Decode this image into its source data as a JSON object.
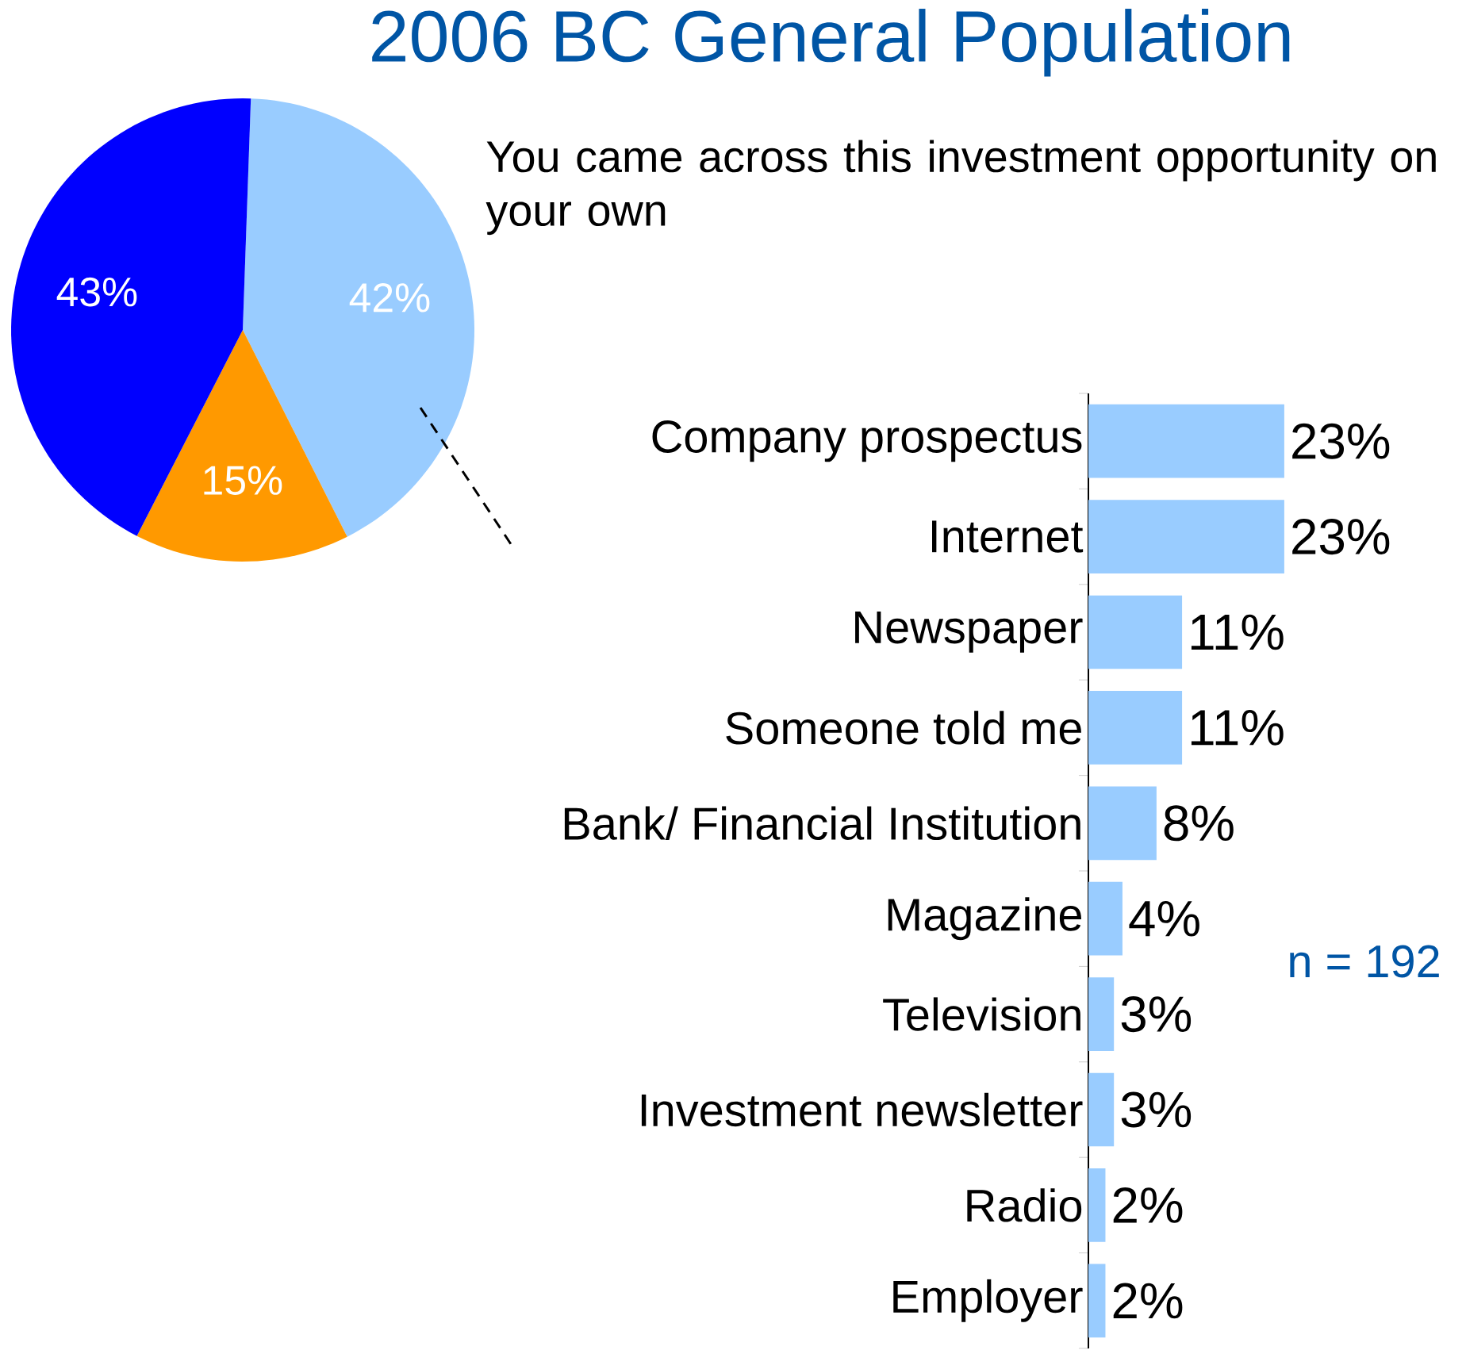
{
  "chart_data": [
    {
      "type": "pie",
      "title": "2006 BC General Population",
      "categories": [
        null,
        null,
        null
      ],
      "values": [
        42,
        15,
        43
      ],
      "colors": [
        "#99ccff",
        "#ff9900",
        "#0000ff"
      ],
      "value_labels": [
        "42%",
        "15%",
        "43%"
      ]
    },
    {
      "type": "bar",
      "orientation": "horizontal",
      "title": "You came across this investment opportunity on your own",
      "categories": [
        "Company prospectus",
        "Internet",
        "Newspaper",
        "Someone told me",
        "Bank/ Financial Institution",
        "Magazine",
        "Television",
        "Investment newsletter",
        "Radio",
        "Employer"
      ],
      "values": [
        23,
        23,
        11,
        11,
        8,
        4,
        3,
        3,
        2,
        2
      ],
      "color": "#99ccff",
      "value_labels": [
        "23%",
        "23%",
        "11%",
        "11%",
        "8%",
        "4%",
        "3%",
        "3%",
        "2%",
        "2%"
      ],
      "annotations": [
        "n = 192"
      ]
    }
  ]
}
